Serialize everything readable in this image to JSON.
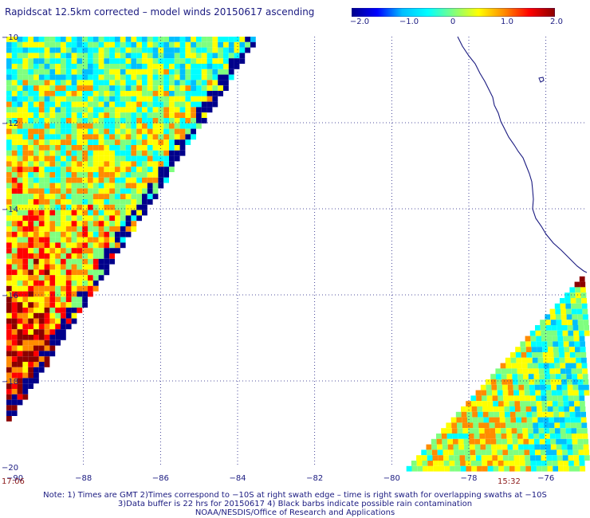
{
  "title": "Rapidscat 12.5km corrected – model winds 20150617 ascending",
  "colorbar": {
    "ticks": [
      "−2.0",
      "−1.0",
      "0",
      "1.0",
      "2.0"
    ],
    "range": [
      -2.0,
      2.0
    ],
    "colors": [
      "#00008b",
      "#0000ff",
      "#00bfff",
      "#00ffff",
      "#7fff7f",
      "#ffff00",
      "#ff8c00",
      "#ff0000",
      "#8b0000"
    ]
  },
  "map": {
    "lon_range": [
      -90,
      -75
    ],
    "lat_range": [
      -20,
      -10
    ],
    "lon_labels": [
      "−90",
      "−88",
      "−86",
      "−84",
      "−82",
      "−80",
      "−78",
      "−76"
    ],
    "lat_labels": [
      "−10",
      "−12",
      "−14",
      "−16",
      "−18",
      "−20"
    ],
    "grid": "dotted",
    "coastline_color": "#1a1a80"
  },
  "swath_times": {
    "left": "17:06",
    "right": "15:32"
  },
  "notes": [
    "Note: 1) Times are GMT 2)Times correspond to −10S at right swath edge – time is right swath for overlapping swaths at −10S",
    "3)Data buffer is 22 hrs for 20150617 4) Black barbs indicate possible rain contamination",
    "NOAA/NESDIS/Office of Research and Applications"
  ]
}
